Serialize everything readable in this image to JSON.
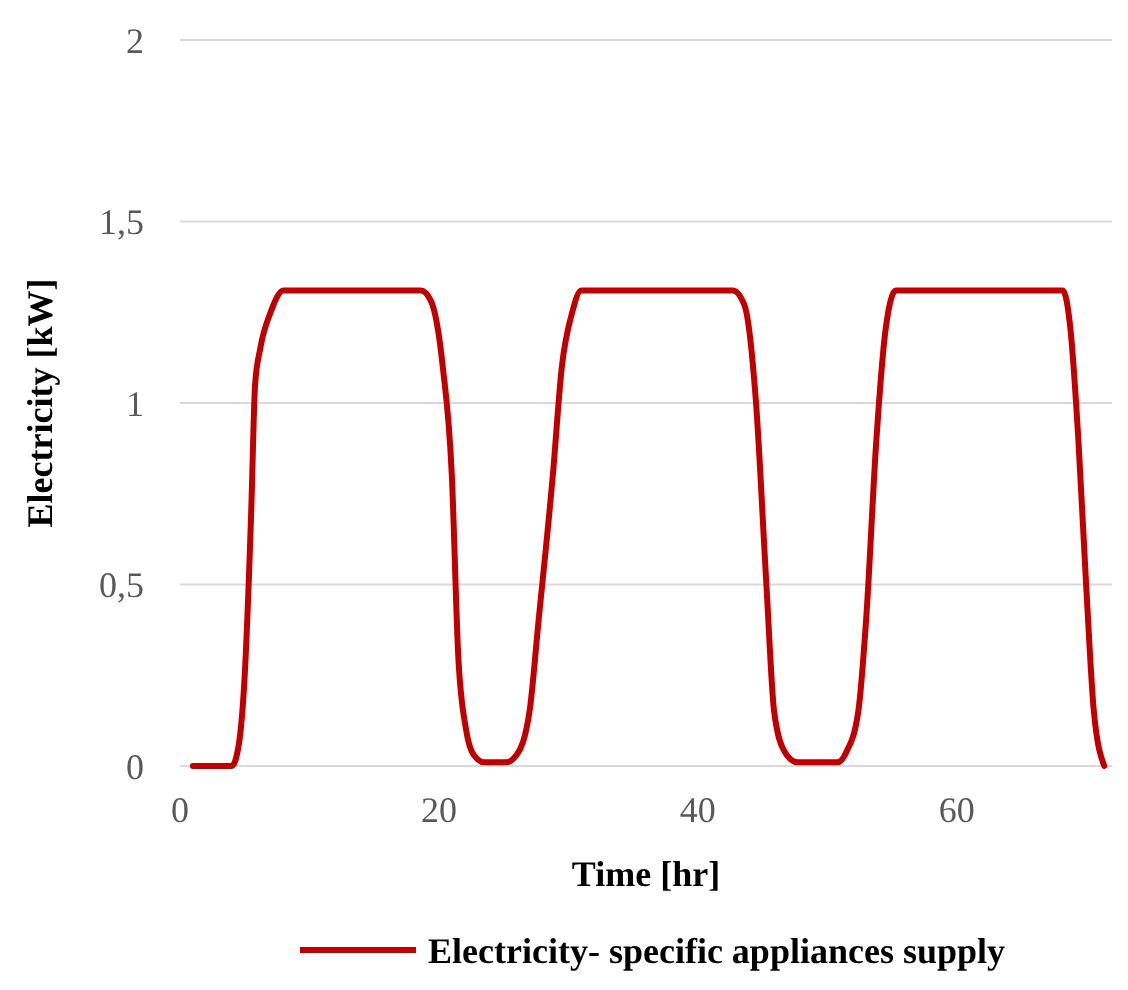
{
  "chart_data": {
    "type": "line",
    "xlabel": "Time [hr]",
    "ylabel": "Electricity [kW]",
    "xlim": [
      0,
      72
    ],
    "xticks": [
      0,
      20,
      40,
      60
    ],
    "ylim": [
      0,
      2
    ],
    "yticks": [
      0,
      {
        "value": 0.5,
        "label": "0,5"
      },
      1,
      {
        "value": 1.5,
        "label": "1,5"
      },
      2
    ],
    "grid": "y",
    "legend": "bottom",
    "line_style": "solid",
    "marker": "none",
    "x": [
      1,
      4,
      4.5,
      5,
      5.5,
      5.8,
      6.2,
      7,
      8,
      18.6,
      19.4,
      20.3,
      21,
      21.5,
      22.1,
      22.7,
      23.5,
      25.2,
      26,
      27,
      27.7,
      28.8,
      29.5,
      30.3,
      31,
      42.7,
      43.6,
      44.5,
      45.3,
      45.9,
      46.7,
      47.7,
      50.8,
      51.5,
      52.4,
      53,
      53.8,
      54.5,
      55.3,
      68.2,
      68.8,
      69.4,
      70,
      70.6,
      71.4
    ],
    "series": [
      {
        "name": "Electricity- specific appliances supply",
        "color": "#c00000",
        "values": [
          0,
          0,
          0.05,
          0.25,
          0.7,
          1.05,
          1.15,
          1.25,
          1.31,
          1.31,
          1.28,
          1.1,
          0.8,
          0.3,
          0.1,
          0.03,
          0.01,
          0.01,
          0.03,
          0.15,
          0.4,
          0.8,
          1.1,
          1.25,
          1.31,
          1.31,
          1.27,
          1.0,
          0.5,
          0.15,
          0.04,
          0.01,
          0.01,
          0.04,
          0.15,
          0.4,
          0.9,
          1.2,
          1.31,
          1.31,
          1.2,
          0.9,
          0.5,
          0.15,
          0
        ]
      }
    ]
  }
}
